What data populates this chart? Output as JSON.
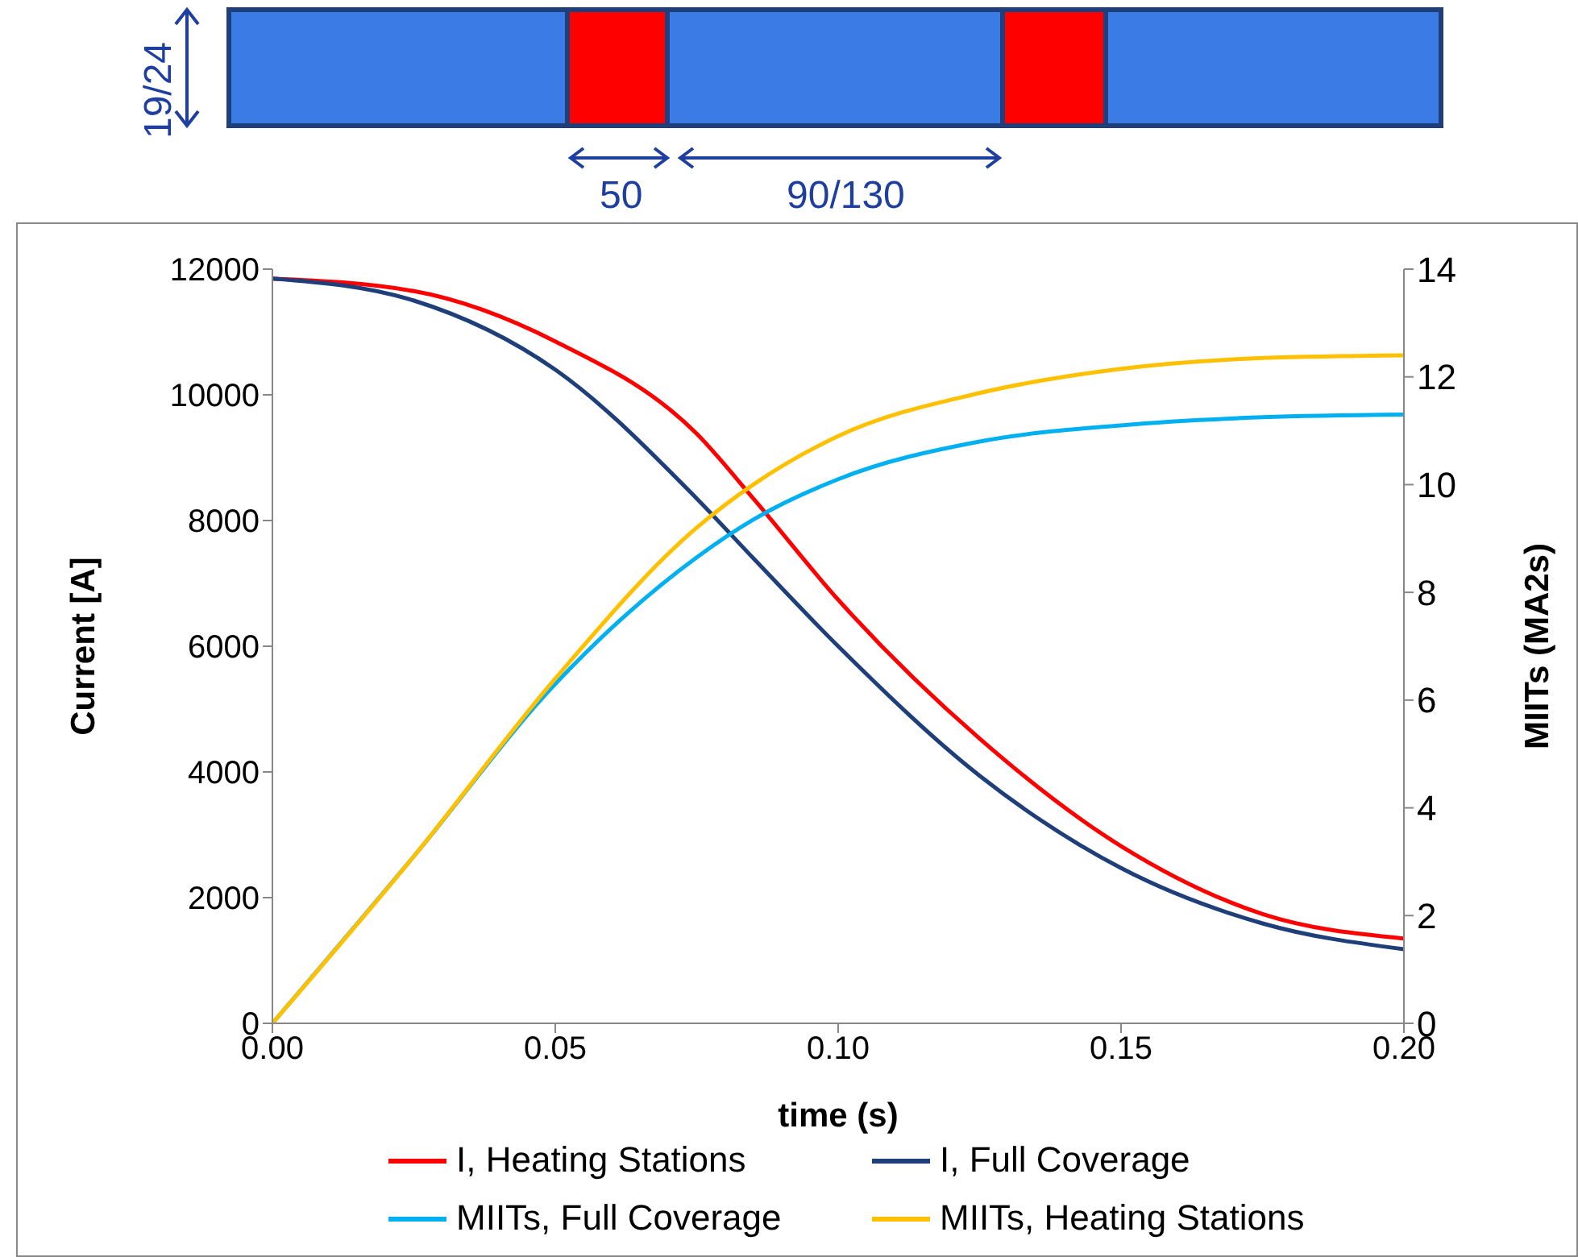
{
  "chart_data": {
    "type": "line",
    "xlabel": "time (s)",
    "ylabel": "Current [A]",
    "y2label": "MIITs (MA2s)",
    "annotations": [
      "19/24",
      "50",
      "90/130"
    ],
    "x": [
      0,
      0.025,
      0.05,
      0.075,
      0.085,
      0.1,
      0.125,
      0.15,
      0.175,
      0.2
    ],
    "series": [
      {
        "name": "I, Heating Stations",
        "color": "#ff0000",
        "values": [
          11850,
          11650,
          10850,
          9380,
          8350,
          6740,
          4530,
          2820,
          1740,
          1350
        ]
      },
      {
        "name": "I, Full Coverage",
        "color": "#1f3f7a",
        "values": [
          11850,
          11500,
          10400,
          8350,
          7400,
          6000,
          3940,
          2470,
          1590,
          1180
        ]
      },
      {
        "name": "MIITs, Full Coverage",
        "color": "#00b0f0",
        "axis": "y2",
        "values": [
          0,
          3.1,
          6.3,
          8.65,
          9.35,
          10.1,
          10.8,
          11.1,
          11.25,
          11.3
        ]
      },
      {
        "name": "MIITs, Heating Stations",
        "color": "#ffc000",
        "axis": "y2",
        "values": [
          0,
          3.1,
          6.4,
          9.2,
          10.0,
          10.9,
          11.7,
          12.15,
          12.35,
          12.4
        ]
      }
    ],
    "xlim": [
      0,
      0.2
    ],
    "xticks": [
      {
        "value": 0,
        "label": "0.00"
      },
      {
        "value": 0.05,
        "label": "0.05"
      },
      {
        "value": 0.1,
        "label": "0.10"
      },
      {
        "value": 0.15,
        "label": "0.15"
      },
      {
        "value": 0.2,
        "label": "0.20"
      }
    ],
    "ylim": [
      0,
      12000
    ],
    "yticks": [
      0,
      2000,
      4000,
      6000,
      8000,
      10000,
      12000
    ],
    "y2lim": [
      0,
      14
    ],
    "y2ticks": [
      0,
      2,
      4,
      6,
      8,
      10,
      12,
      14
    ],
    "grid": false,
    "legend": "bottom",
    "marker": "none",
    "line_style": "solid"
  }
}
